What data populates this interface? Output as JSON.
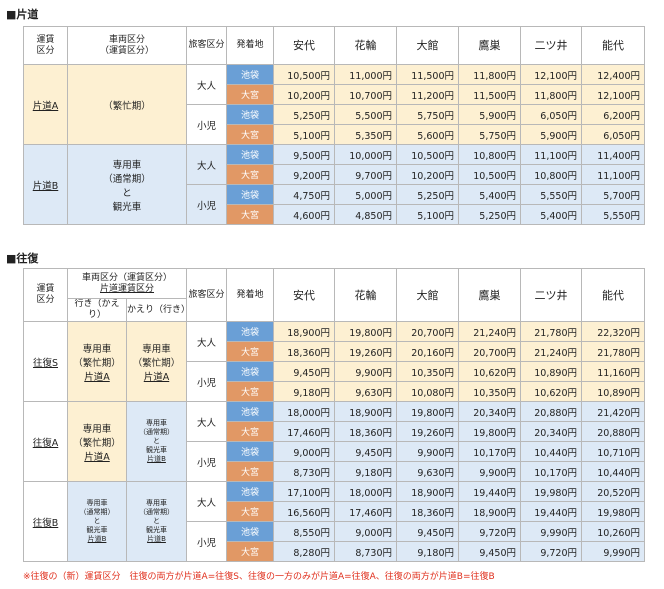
{
  "oneway": {
    "title": "■片道",
    "header": {
      "fare_class_l1": "運賃",
      "fare_class_l2": "区分",
      "vehicle_l1": "車両区分",
      "vehicle_l2": "（運賃区分）",
      "passenger": "旅客区分",
      "origin": "発着地"
    },
    "destinations": [
      "安代",
      "花輪",
      "大館",
      "鷹巣",
      "二ツ井",
      "能代"
    ],
    "groups": [
      {
        "label": "片道A",
        "vehicle_l1": "（繁忙期）",
        "rows": [
          {
            "pax": "大人",
            "stop": "池袋",
            "fares": [
              "10,500円",
              "11,000円",
              "11,500円",
              "11,800円",
              "12,100円",
              "12,400円"
            ]
          },
          {
            "pax": "",
            "stop": "大宮",
            "fares": [
              "10,200円",
              "10,700円",
              "11,200円",
              "11,500円",
              "11,800円",
              "12,100円"
            ]
          },
          {
            "pax": "小児",
            "stop": "池袋",
            "fares": [
              "5,250円",
              "5,500円",
              "5,750円",
              "5,900円",
              "6,050円",
              "6,200円"
            ]
          },
          {
            "pax": "",
            "stop": "大宮",
            "fares": [
              "5,100円",
              "5,350円",
              "5,600円",
              "5,750円",
              "5,900円",
              "6,050円"
            ]
          }
        ]
      },
      {
        "label": "片道B",
        "vehicle_l1": "専用車",
        "vehicle_l2": "（通常期）",
        "vehicle_l3": "と",
        "vehicle_l4": "観光車",
        "rows": [
          {
            "pax": "大人",
            "stop": "池袋",
            "fares": [
              "9,500円",
              "10,000円",
              "10,500円",
              "10,800円",
              "11,100円",
              "11,400円"
            ]
          },
          {
            "pax": "",
            "stop": "大宮",
            "fares": [
              "9,200円",
              "9,700円",
              "10,200円",
              "10,500円",
              "10,800円",
              "11,100円"
            ]
          },
          {
            "pax": "小児",
            "stop": "池袋",
            "fares": [
              "4,750円",
              "5,000円",
              "5,250円",
              "5,400円",
              "5,550円",
              "5,700円"
            ]
          },
          {
            "pax": "",
            "stop": "大宮",
            "fares": [
              "4,600円",
              "4,850円",
              "5,100円",
              "5,250円",
              "5,400円",
              "5,550円"
            ]
          }
        ]
      }
    ]
  },
  "roundtrip": {
    "title": "■往復",
    "header": {
      "fare_class_l1": "運賃",
      "fare_class_l2": "区分",
      "vehicle_l1": "車両区分（運賃区分）",
      "vehicle_l2": "片道運賃区分",
      "go": "行き（かえり）",
      "back": "かえり（行き）",
      "passenger": "旅客区分",
      "origin": "発着地"
    },
    "destinations": [
      "安代",
      "花輪",
      "大館",
      "鷹巣",
      "二ツ井",
      "能代"
    ],
    "groups": [
      {
        "label": "往復S",
        "go": {
          "l1": "専用車",
          "l2": "（繁忙期）",
          "l3": "片道A"
        },
        "back": {
          "l1": "専用車",
          "l2": "（繁忙期）",
          "l3": "片道A"
        },
        "rows": [
          {
            "pax": "大人",
            "stop": "池袋",
            "fares": [
              "18,900円",
              "19,800円",
              "20,700円",
              "21,240円",
              "21,780円",
              "22,320円"
            ]
          },
          {
            "pax": "",
            "stop": "大宮",
            "fares": [
              "18,360円",
              "19,260円",
              "20,160円",
              "20,700円",
              "21,240円",
              "21,780円"
            ]
          },
          {
            "pax": "小児",
            "stop": "池袋",
            "fares": [
              "9,450円",
              "9,900円",
              "10,350円",
              "10,620円",
              "10,890円",
              "11,160円"
            ]
          },
          {
            "pax": "",
            "stop": "大宮",
            "fares": [
              "9,180円",
              "9,630円",
              "10,080円",
              "10,350円",
              "10,620円",
              "10,890円"
            ]
          }
        ]
      },
      {
        "label": "往復A",
        "go": {
          "l1": "専用車",
          "l2": "（繁忙期）",
          "l3": "片道A"
        },
        "back": {
          "l1": "専用車",
          "l2": "（通常期）",
          "l3": "と",
          "l4": "観光車",
          "l5": "片道B"
        },
        "rows": [
          {
            "pax": "大人",
            "stop": "池袋",
            "fares": [
              "18,000円",
              "18,900円",
              "19,800円",
              "20,340円",
              "20,880円",
              "21,420円"
            ]
          },
          {
            "pax": "",
            "stop": "大宮",
            "fares": [
              "17,460円",
              "18,360円",
              "19,260円",
              "19,800円",
              "20,340円",
              "20,880円"
            ]
          },
          {
            "pax": "小児",
            "stop": "池袋",
            "fares": [
              "9,000円",
              "9,450円",
              "9,900円",
              "10,170円",
              "10,440円",
              "10,710円"
            ]
          },
          {
            "pax": "",
            "stop": "大宮",
            "fares": [
              "8,730円",
              "9,180円",
              "9,630円",
              "9,900円",
              "10,170円",
              "10,440円"
            ]
          }
        ]
      },
      {
        "label": "往復B",
        "go": {
          "l1": "専用車",
          "l2": "（通常期）",
          "l3": "と",
          "l4": "観光車",
          "l5": "片道B"
        },
        "back": {
          "l1": "専用車",
          "l2": "（通常期）",
          "l3": "と",
          "l4": "観光車",
          "l5": "片道B"
        },
        "rows": [
          {
            "pax": "大人",
            "stop": "池袋",
            "fares": [
              "17,100円",
              "18,000円",
              "18,900円",
              "19,440円",
              "19,980円",
              "20,520円"
            ]
          },
          {
            "pax": "",
            "stop": "大宮",
            "fares": [
              "16,560円",
              "17,460円",
              "18,360円",
              "18,900円",
              "19,440円",
              "19,980円"
            ]
          },
          {
            "pax": "小児",
            "stop": "池袋",
            "fares": [
              "8,550円",
              "9,000円",
              "9,450円",
              "9,720円",
              "9,990円",
              "10,260円"
            ]
          },
          {
            "pax": "",
            "stop": "大宮",
            "fares": [
              "8,280円",
              "8,730円",
              "9,180円",
              "9,450円",
              "9,720円",
              "9,990円"
            ]
          }
        ]
      }
    ]
  },
  "note": "※往復の（新）運賃区分　往復の両方が片道A=往復S、往復の一方のみが片道A=往復A、往復の両方が片道B=往復B",
  "colors": {
    "ikebukuro": "#6a9fd6",
    "omiya": "#e19865",
    "typeA_bg": "#fdf0d2",
    "typeB_bg": "#dde9f6",
    "note_text": "#e0301e"
  },
  "dest_colors": [
    "#fdf9c8",
    "#eef4d6",
    "#fce9ef",
    "#dff2ee",
    "#e4e9f1",
    "#e7e3f6"
  ]
}
